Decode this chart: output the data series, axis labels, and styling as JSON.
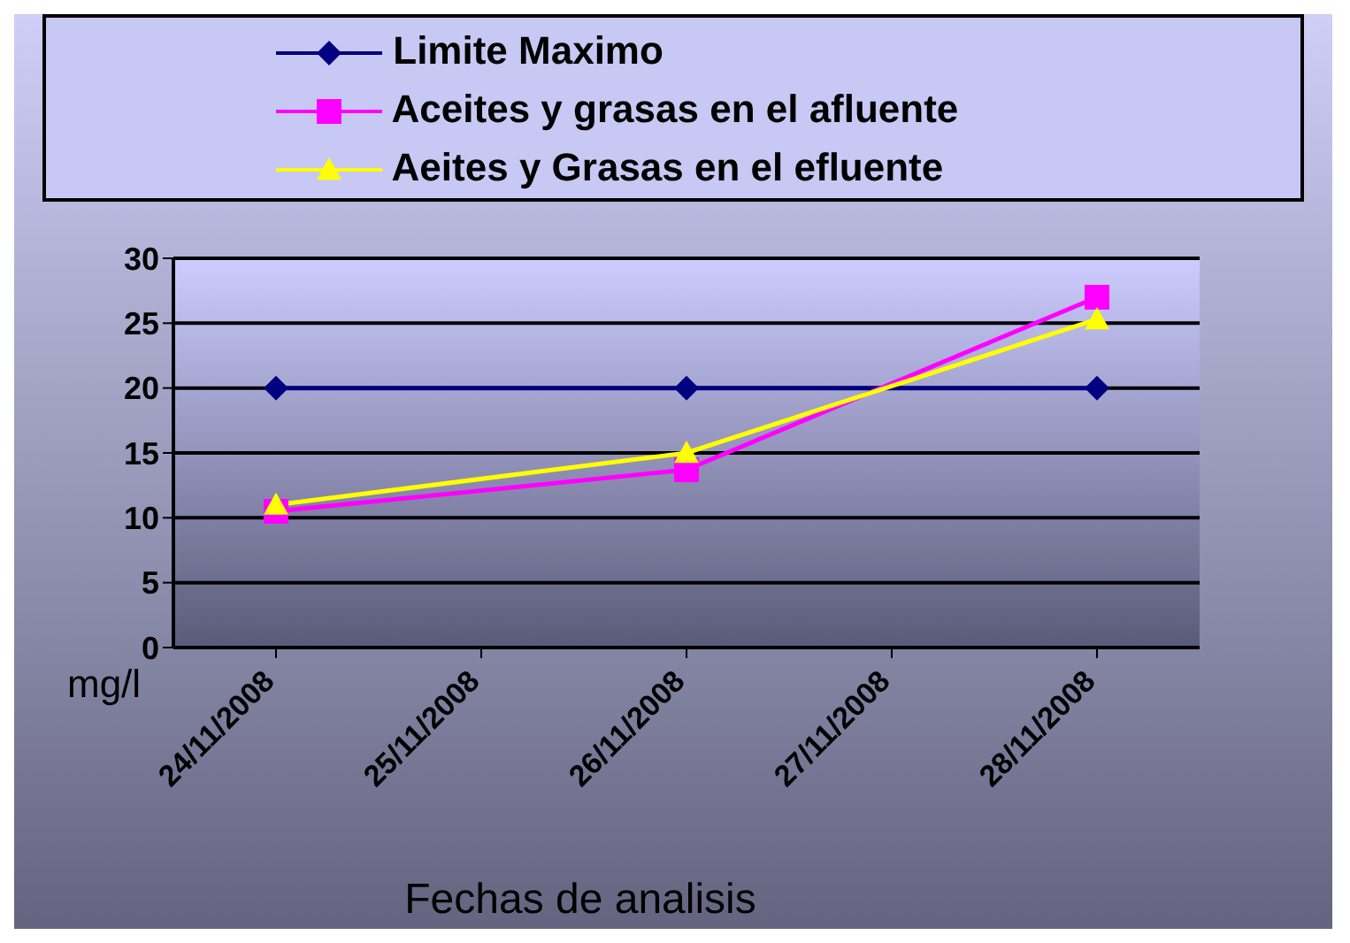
{
  "chart_data": {
    "type": "line",
    "xlabel": "Fechas de analisis",
    "ylabel": "mg/l",
    "categories": [
      "24/11/2008",
      "25/11/2008",
      "26/11/2008",
      "27/11/2008",
      "28/11/2008"
    ],
    "series": [
      {
        "name": "Limite Maximo",
        "color": "#000080",
        "marker": "diamond",
        "values": [
          20,
          null,
          20,
          null,
          20
        ]
      },
      {
        "name": "Aceites y grasas en el afluente",
        "color": "#ff00ff",
        "marker": "square",
        "values": [
          10.5,
          null,
          13.7,
          null,
          27
        ]
      },
      {
        "name": "Aeites y Grasas en el efluente",
        "color": "#ffff00",
        "marker": "triangle",
        "values": [
          11,
          null,
          15,
          null,
          25.3
        ]
      }
    ],
    "ylim": [
      0,
      30
    ],
    "yticks": [
      0,
      5,
      10,
      15,
      20,
      25,
      30
    ],
    "grid": "y",
    "legend": "top"
  }
}
